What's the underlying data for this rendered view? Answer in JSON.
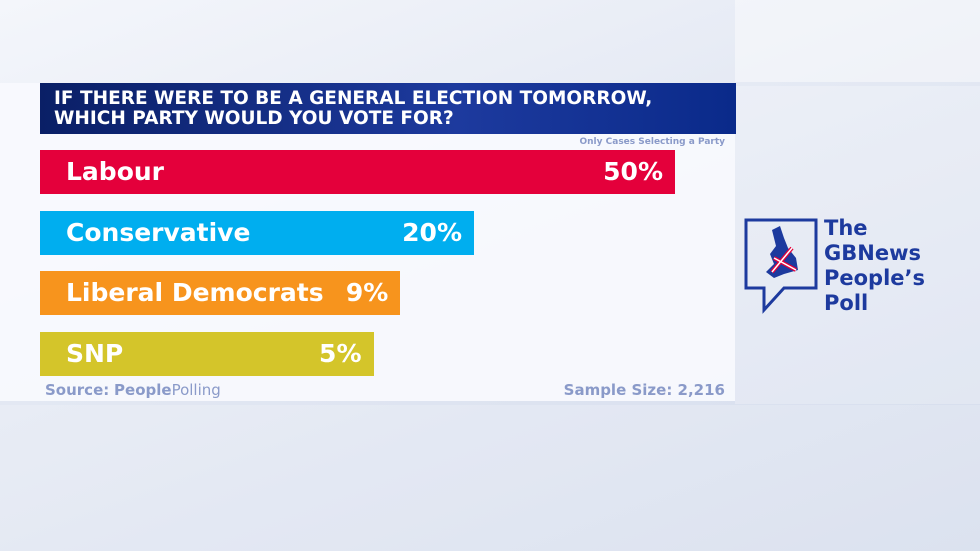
{
  "chart_data": {
    "type": "bar",
    "orientation": "horizontal",
    "title": "IF THERE WERE TO BE A GENERAL ELECTION TOMORROW, WHICH PARTY WOULD YOU VOTE FOR?",
    "subtitle": "Only Cases Selecting a Party",
    "categories": [
      "Labour",
      "Conservative",
      "Liberal Democrats",
      "SNP"
    ],
    "values": [
      50,
      20,
      9,
      5
    ],
    "value_labels": [
      "50%",
      "20%",
      "9%",
      "5%"
    ],
    "colors": [
      "#e4003b",
      "#00aeef",
      "#f7941d",
      "#d4c52a"
    ],
    "source": {
      "label": "Source:",
      "brand_bold": "People",
      "brand": "Polling"
    },
    "sample_size": "Sample Size: 2,216"
  },
  "logo": {
    "line1": "The",
    "line2_bold": "GB",
    "line2": "News",
    "line3": "People’s",
    "line4": "Poll"
  }
}
